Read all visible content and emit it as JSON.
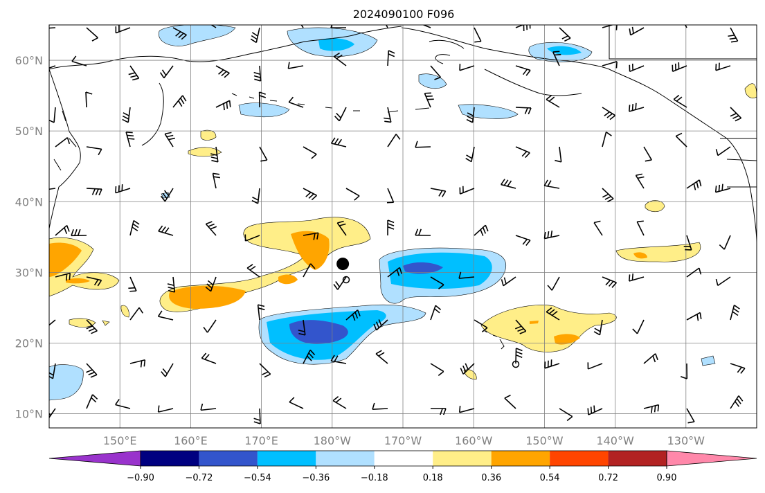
{
  "title": "2024090100 F096",
  "map": {
    "lat_ticks": [
      {
        "value": 60,
        "label": "60°N"
      },
      {
        "value": 50,
        "label": "50°N"
      },
      {
        "value": 40,
        "label": "40°N"
      },
      {
        "value": 30,
        "label": "30°N"
      },
      {
        "value": 20,
        "label": "20°N"
      },
      {
        "value": 10,
        "label": "10°N"
      }
    ],
    "lon_ticks": [
      {
        "value": 150,
        "label": "150°E"
      },
      {
        "value": 160,
        "label": "160°E"
      },
      {
        "value": 170,
        "label": "170°E"
      },
      {
        "value": 180,
        "label": "180°W"
      },
      {
        "value": 190,
        "label": "170°W"
      },
      {
        "value": 200,
        "label": "160°W"
      },
      {
        "value": 210,
        "label": "150°W"
      },
      {
        "value": 220,
        "label": "140°W"
      },
      {
        "value": 230,
        "label": "130°W"
      }
    ],
    "extent": {
      "lon_min": 140,
      "lon_max": 240,
      "lat_min": 8,
      "lat_max": 65
    },
    "marker": {
      "type": "filled-circle",
      "lon": 181.5,
      "lat": 31.2,
      "color": "#000000"
    }
  },
  "colorbar": {
    "levels": [
      "−0.90",
      "−0.72",
      "−0.54",
      "−0.36",
      "−0.18",
      "0.18",
      "0.36",
      "0.54",
      "0.72",
      "0.90"
    ],
    "colors": [
      "#9933cc",
      "#000080",
      "#3355cc",
      "#00bfff",
      "#b0e0ff",
      "#ffffff",
      "#ffee88",
      "#ffa500",
      "#ff4500",
      "#b22222",
      "#ff88aa"
    ]
  }
}
